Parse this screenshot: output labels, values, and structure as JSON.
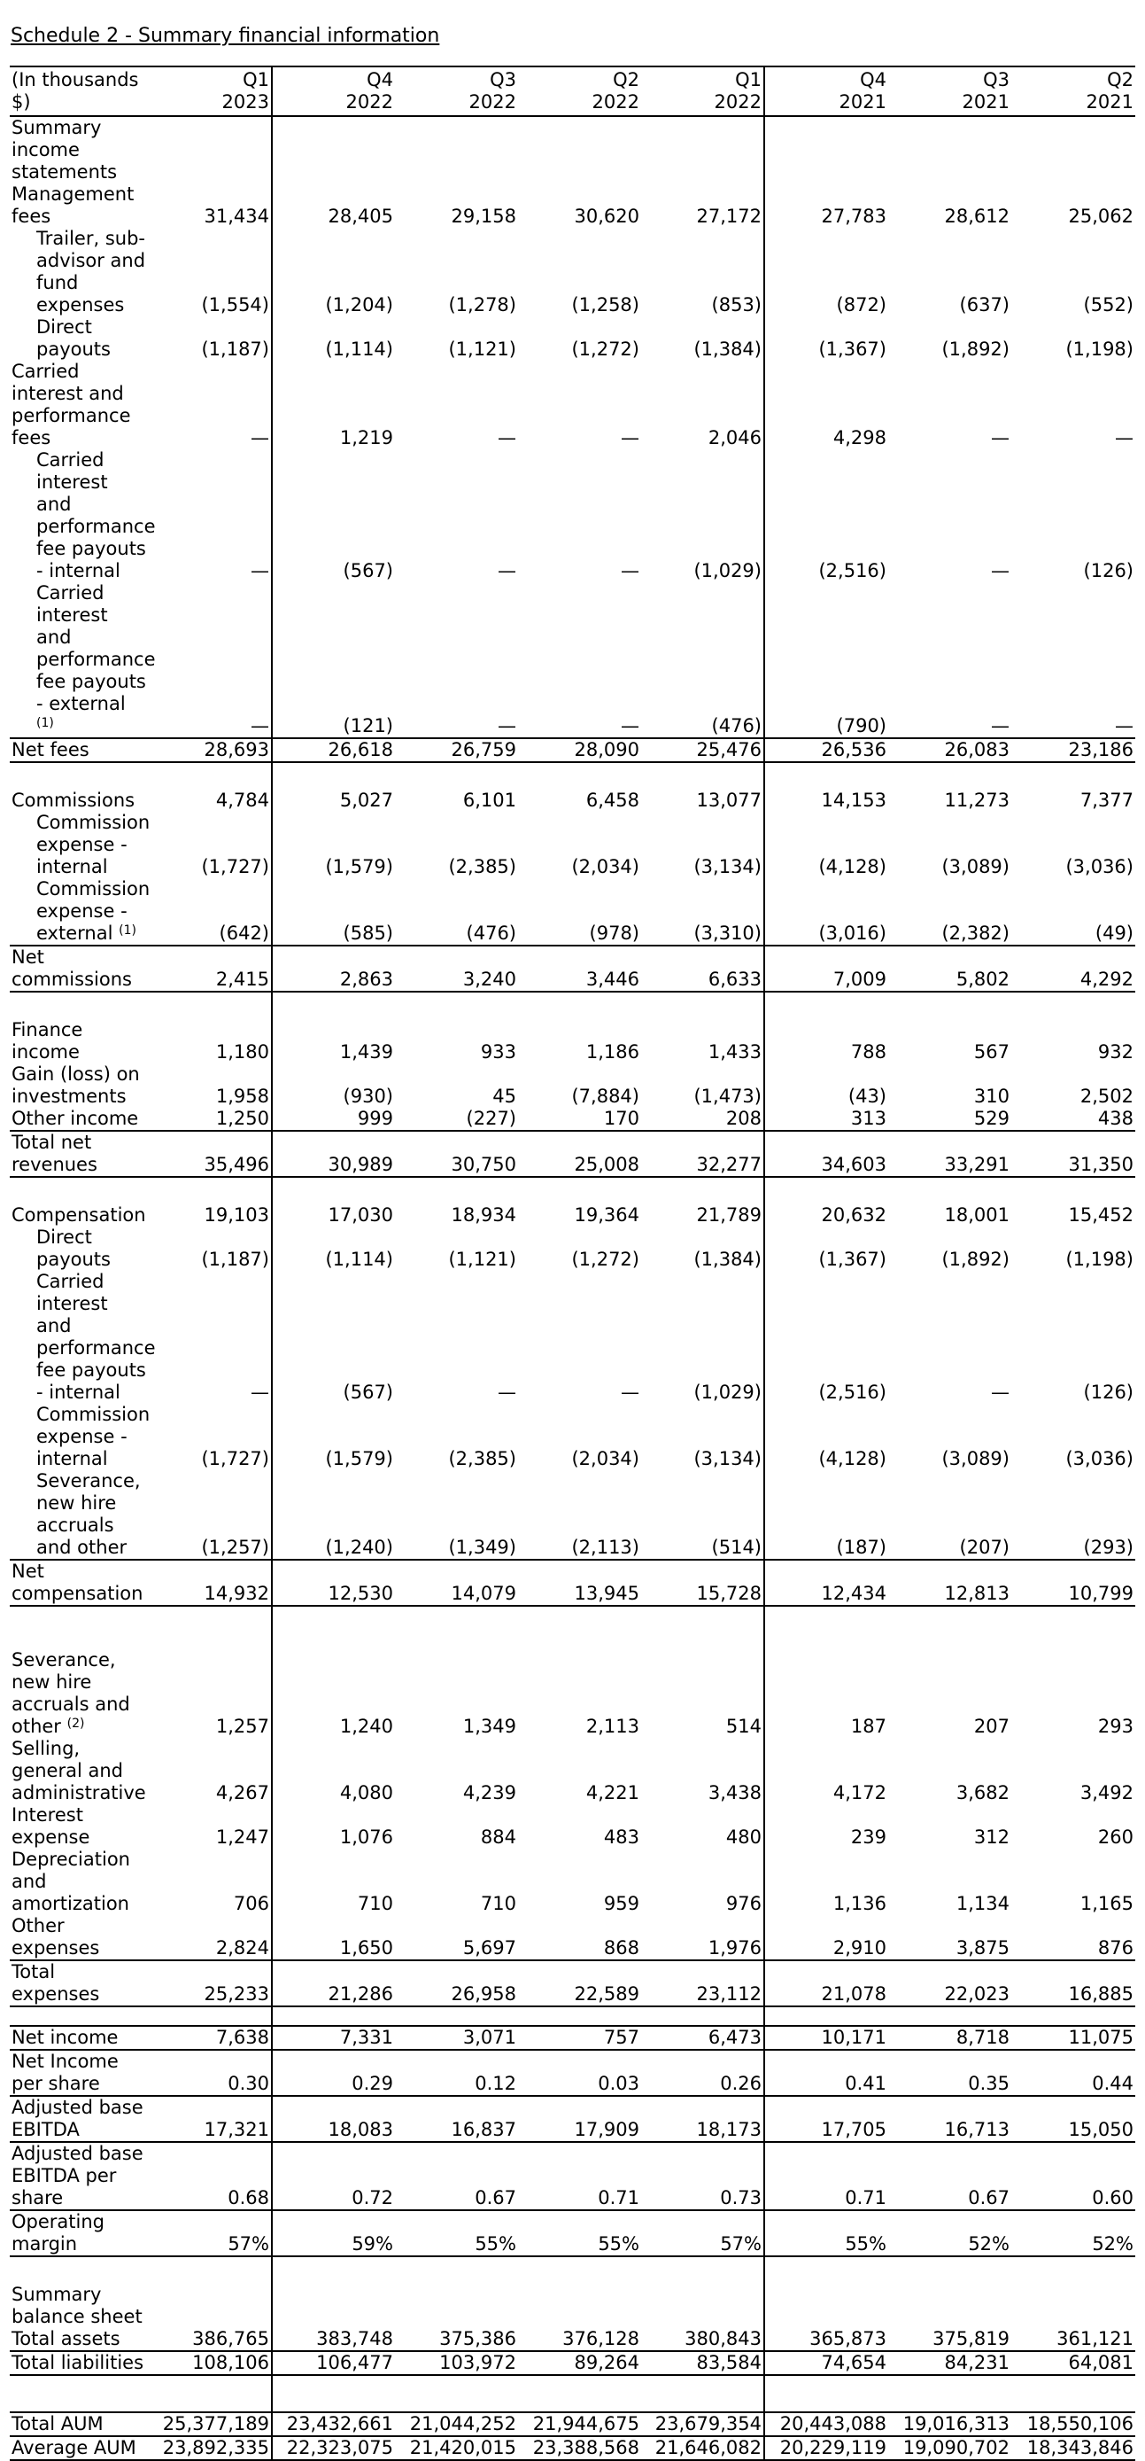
{
  "title": "Schedule 2 - Summary financial information",
  "header": {
    "label": "(In thousands $)",
    "periods": [
      {
        "q": "Q1",
        "y": "2023"
      },
      {
        "q": "Q4",
        "y": "2022"
      },
      {
        "q": "Q3",
        "y": "2022"
      },
      {
        "q": "Q2",
        "y": "2022"
      },
      {
        "q": "Q1",
        "y": "2022"
      },
      {
        "q": "Q4",
        "y": "2021"
      },
      {
        "q": "Q3",
        "y": "2021"
      },
      {
        "q": "Q2",
        "y": "2021"
      }
    ]
  },
  "rows": [
    {
      "label": "Summary income statements",
      "bold": true,
      "values": []
    },
    {
      "label": "Management fees",
      "values": [
        "31,434",
        "28,405",
        "29,158",
        "30,620",
        "27,172",
        "27,783",
        "28,612",
        "25,062"
      ]
    },
    {
      "label": "Trailer, sub-advisor and fund expenses",
      "indent": true,
      "values": [
        "(1,554)",
        "(1,204)",
        "(1,278)",
        "(1,258)",
        "(853)",
        "(872)",
        "(637)",
        "(552)"
      ]
    },
    {
      "label": "Direct payouts",
      "indent": true,
      "values": [
        "(1,187)",
        "(1,114)",
        "(1,121)",
        "(1,272)",
        "(1,384)",
        "(1,367)",
        "(1,892)",
        "(1,198)"
      ]
    },
    {
      "label": "Carried interest and performance fees",
      "values": [
        "—",
        "1,219",
        "—",
        "—",
        "2,046",
        "4,298",
        "—",
        "—"
      ]
    },
    {
      "label": "Carried interest and performance fee payouts - internal",
      "indent": true,
      "values": [
        "—",
        "(567)",
        "—",
        "—",
        "(1,029)",
        "(2,516)",
        "—",
        "(126)"
      ]
    },
    {
      "label": "Carried interest and performance fee payouts - external",
      "sup": "(1)",
      "indent": true,
      "values": [
        "—",
        "(121)",
        "—",
        "—",
        "(476)",
        "(790)",
        "—",
        "—"
      ]
    },
    {
      "label": "Net fees",
      "rule_top": true,
      "rule_bottom": true,
      "values": [
        "28,693",
        "26,618",
        "26,759",
        "28,090",
        "25,476",
        "26,536",
        "26,083",
        "23,186"
      ]
    },
    {
      "spacer": "spacer"
    },
    {
      "label": "Commissions",
      "values": [
        "4,784",
        "5,027",
        "6,101",
        "6,458",
        "13,077",
        "14,153",
        "11,273",
        "7,377"
      ]
    },
    {
      "label": "Commission expense - internal",
      "indent": true,
      "values": [
        "(1,727)",
        "(1,579)",
        "(2,385)",
        "(2,034)",
        "(3,134)",
        "(4,128)",
        "(3,089)",
        "(3,036)"
      ]
    },
    {
      "label": "Commission expense - external",
      "sup": "(1)",
      "indent": true,
      "values": [
        "(642)",
        "(585)",
        "(476)",
        "(978)",
        "(3,310)",
        "(3,016)",
        "(2,382)",
        "(49)"
      ]
    },
    {
      "label": "Net commissions",
      "rule_top": true,
      "rule_bottom": true,
      "values": [
        "2,415",
        "2,863",
        "3,240",
        "3,446",
        "6,633",
        "7,009",
        "5,802",
        "4,292"
      ]
    },
    {
      "spacer": "spacer"
    },
    {
      "label": "Finance income",
      "values": [
        "1,180",
        "1,439",
        "933",
        "1,186",
        "1,433",
        "788",
        "567",
        "932"
      ]
    },
    {
      "label": "Gain (loss) on investments",
      "values": [
        "1,958",
        "(930)",
        "45",
        "(7,884)",
        "(1,473)",
        "(43)",
        "310",
        "2,502"
      ]
    },
    {
      "label": "Other income",
      "values": [
        "1,250",
        "999",
        "(227)",
        "170",
        "208",
        "313",
        "529",
        "438"
      ]
    },
    {
      "label": "Total net revenues",
      "bold": true,
      "rule_top": true,
      "rule_bottom": true,
      "values": [
        "35,496",
        "30,989",
        "30,750",
        "25,008",
        "32,277",
        "34,603",
        "33,291",
        "31,350"
      ]
    },
    {
      "spacer": "spacer"
    },
    {
      "label": "Compensation",
      "values": [
        "19,103",
        "17,030",
        "18,934",
        "19,364",
        "21,789",
        "20,632",
        "18,001",
        "15,452"
      ]
    },
    {
      "label": "Direct payouts",
      "indent": true,
      "values": [
        "(1,187)",
        "(1,114)",
        "(1,121)",
        "(1,272)",
        "(1,384)",
        "(1,367)",
        "(1,892)",
        "(1,198)"
      ]
    },
    {
      "label": "Carried interest and performance fee payouts - internal",
      "indent": true,
      "values": [
        "—",
        "(567)",
        "—",
        "—",
        "(1,029)",
        "(2,516)",
        "—",
        "(126)"
      ]
    },
    {
      "label": "Commission expense - internal",
      "indent": true,
      "values": [
        "(1,727)",
        "(1,579)",
        "(2,385)",
        "(2,034)",
        "(3,134)",
        "(4,128)",
        "(3,089)",
        "(3,036)"
      ]
    },
    {
      "label": "Severance, new hire accruals and other",
      "indent": true,
      "values": [
        "(1,257)",
        "(1,240)",
        "(1,349)",
        "(2,113)",
        "(514)",
        "(187)",
        "(207)",
        "(293)"
      ]
    },
    {
      "label": "Net compensation",
      "rule_top": true,
      "rule_bottom": true,
      "values": [
        "14,932",
        "12,530",
        "14,079",
        "13,945",
        "15,728",
        "12,434",
        "12,813",
        "10,799"
      ]
    },
    {
      "spacer": "spacer-xl"
    },
    {
      "label": "Severance, new hire accruals and other",
      "sup": "(2)",
      "values": [
        "1,257",
        "1,240",
        "1,349",
        "2,113",
        "514",
        "187",
        "207",
        "293"
      ]
    },
    {
      "label": "Selling, general and administrative",
      "values": [
        "4,267",
        "4,080",
        "4,239",
        "4,221",
        "3,438",
        "4,172",
        "3,682",
        "3,492"
      ]
    },
    {
      "label": "Interest expense",
      "values": [
        "1,247",
        "1,076",
        "884",
        "483",
        "480",
        "239",
        "312",
        "260"
      ]
    },
    {
      "label": "Depreciation and amortization",
      "values": [
        "706",
        "710",
        "710",
        "959",
        "976",
        "1,136",
        "1,134",
        "1,165"
      ]
    },
    {
      "label": "Other expenses",
      "values": [
        "2,824",
        "1,650",
        "5,697",
        "868",
        "1,976",
        "2,910",
        "3,875",
        "876"
      ]
    },
    {
      "label": "Total expenses",
      "bold": true,
      "rule_top": true,
      "rule_bottom": true,
      "values": [
        "25,233",
        "21,286",
        "26,958",
        "22,589",
        "23,112",
        "21,078",
        "22,023",
        "16,885"
      ]
    },
    {
      "spacer": "thin",
      "rule_bottom": true
    },
    {
      "label": "Net income",
      "bold": true,
      "rule_bottom": true,
      "values": [
        "7,638",
        "7,331",
        "3,071",
        "757",
        "6,473",
        "10,171",
        "8,718",
        "11,075"
      ]
    },
    {
      "label": "Net Income per share",
      "rule_bottom": true,
      "values": [
        "0.30",
        "0.29",
        "0.12",
        "0.03",
        "0.26",
        "0.41",
        "0.35",
        "0.44"
      ]
    },
    {
      "label": "Adjusted base EBITDA",
      "bold": true,
      "rule_bottom": true,
      "values": [
        "17,321",
        "18,083",
        "16,837",
        "17,909",
        "18,173",
        "17,705",
        "16,713",
        "15,050"
      ]
    },
    {
      "label": "Adjusted base EBITDA per share",
      "rule_bottom": true,
      "values": [
        "0.68",
        "0.72",
        "0.67",
        "0.71",
        "0.73",
        "0.71",
        "0.67",
        "0.60"
      ]
    },
    {
      "label": "Operating margin",
      "rule_bottom": true,
      "values": [
        "57%",
        "59%",
        "55%",
        "55%",
        "57%",
        "55%",
        "52%",
        "52%"
      ]
    },
    {
      "spacer": "spacer"
    },
    {
      "label": "Summary balance sheet",
      "bold": true,
      "values": []
    },
    {
      "label": "Total assets",
      "rule_bottom": true,
      "values": [
        "386,765",
        "383,748",
        "375,386",
        "376,128",
        "380,843",
        "365,873",
        "375,819",
        "361,121"
      ]
    },
    {
      "label": "Total liabilities",
      "rule_bottom": true,
      "values": [
        "108,106",
        "106,477",
        "103,972",
        "89,264",
        "83,584",
        "74,654",
        "84,231",
        "64,081"
      ]
    },
    {
      "spacer": "spacer-lg"
    },
    {
      "label": "Total AUM",
      "bold": true,
      "rule_top": true,
      "rule_bottom": true,
      "values": [
        "25,377,189",
        "23,432,661",
        "21,044,252",
        "21,944,675",
        "23,679,354",
        "20,443,088",
        "19,016,313",
        "18,550,106"
      ]
    },
    {
      "label": "Average AUM",
      "bold": true,
      "rule_bottom": true,
      "values": [
        "23,892,335",
        "22,323,075",
        "21,420,015",
        "23,388,568",
        "21,646,082",
        "20,229,119",
        "19,090,702",
        "18,343,846"
      ]
    }
  ]
}
